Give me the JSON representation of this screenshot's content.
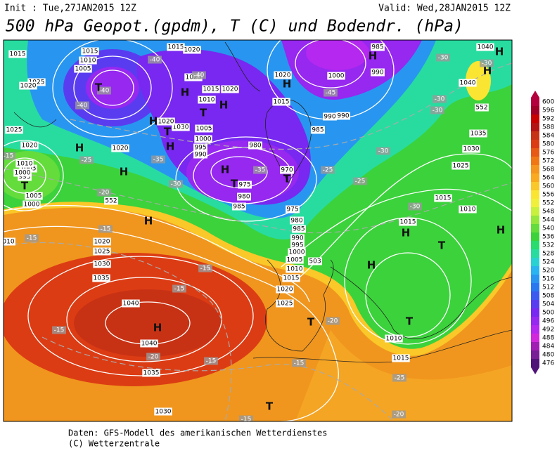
{
  "header": {
    "init": "Init : Tue,27JAN2015 12Z",
    "valid": "Valid: Wed,28JAN2015 12Z",
    "title": "500 hPa Geopot.(gpdm), T (C) und Bodendr. (hPa)"
  },
  "colorbar": {
    "labels": [
      600,
      596,
      592,
      588,
      584,
      580,
      576,
      572,
      568,
      564,
      560,
      556,
      552,
      548,
      544,
      540,
      536,
      532,
      528,
      524,
      520,
      516,
      512,
      508,
      504,
      500,
      496,
      492,
      488,
      484,
      480,
      476
    ],
    "colors": [
      "#b4003c",
      "#a00028",
      "#c80000",
      "#b41414",
      "#c83214",
      "#dc3c14",
      "#e65a14",
      "#f07814",
      "#f5961e",
      "#faaa1e",
      "#fac828",
      "#fae632",
      "#f0f03c",
      "#c8f03c",
      "#96e63c",
      "#64dc3c",
      "#3cd23c",
      "#28dc6e",
      "#28dca0",
      "#28d2d2",
      "#28b4f0",
      "#2896f0",
      "#2878f0",
      "#3c5af0",
      "#5a3cf0",
      "#7828f0",
      "#9628f0",
      "#b428f0",
      "#d228dc",
      "#a01eb4",
      "#781e96",
      "#501478"
    ]
  },
  "map": {
    "labels": [
      "1015",
      "1025",
      "1020",
      "1015",
      "1010",
      "1005",
      "1040",
      "1040",
      "H",
      "H",
      "552",
      "1035",
      "1030",
      "1025",
      "1015",
      "1010",
      "1015",
      "H",
      "T",
      "H",
      "T",
      "1010",
      "1015",
      "-25",
      "-20",
      "T",
      "-15",
      "1030",
      "1035",
      "-20",
      "1040",
      "H",
      "1040",
      "-15",
      "1035",
      "1030",
      "1025",
      "1020",
      "-15",
      "-15",
      "010",
      "1005",
      "1000",
      "-20",
      "552",
      "H",
      "H",
      "H",
      "1020",
      "1025",
      "1020",
      "-25",
      "-30",
      "H",
      "T",
      "975",
      "980",
      "985",
      "-35",
      "970",
      "T",
      "-25",
      "-25",
      "980",
      "985",
      "990",
      "-45",
      "1000",
      "990",
      "985",
      "H",
      "-30",
      "-30",
      "-30",
      "-30",
      "-30",
      "-30",
      "975",
      "980",
      "985",
      "990",
      "995",
      "1000",
      "1005",
      "1010",
      "1015",
      "1020",
      "1025",
      "T",
      "-20",
      "-15",
      "-15",
      "-15",
      "-15",
      "H",
      "1020",
      "1015",
      "990",
      "H",
      "T",
      "1020",
      "1015",
      "1010",
      "1030",
      "H",
      "995",
      "990",
      "1005",
      "1000",
      "H",
      "1025",
      "1015",
      "1020",
      "-40",
      "-40",
      "-40",
      "-40",
      "T",
      "1020",
      "H",
      "T",
      "-35",
      "1005",
      "1010",
      "995",
      "1000",
      "-15",
      "T",
      "H",
      "503"
    ]
  },
  "footer": {
    "source": "Daten: GFS-Modell des amerikanischen Wetterdienstes",
    "copyright": "(C) Wetterzentrale"
  }
}
